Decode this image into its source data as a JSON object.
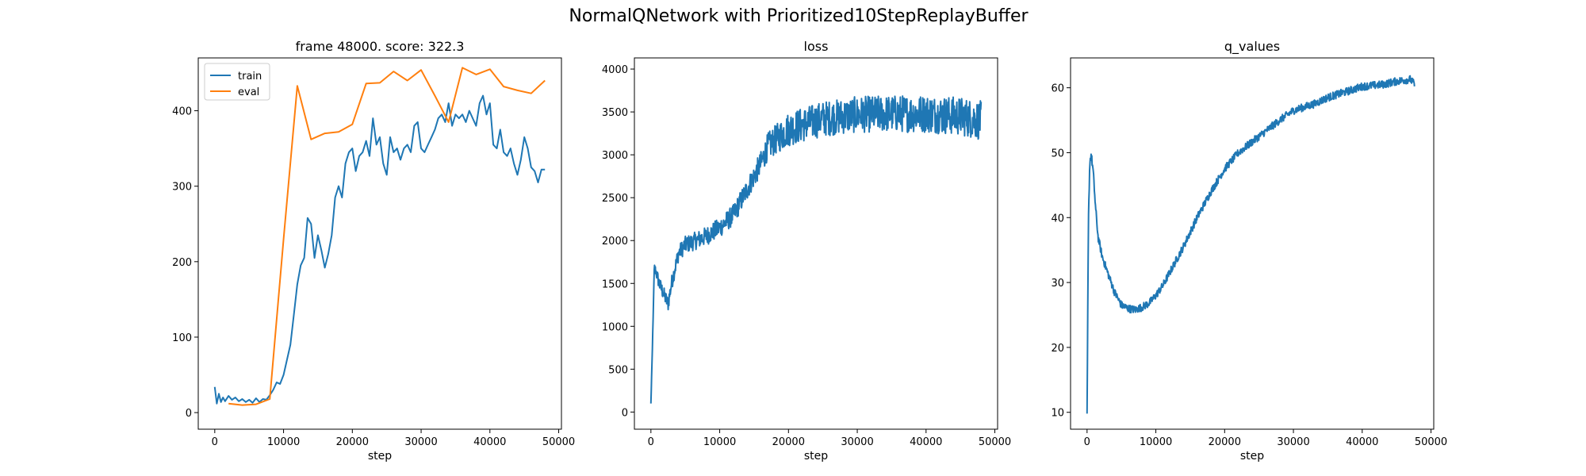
{
  "figure": {
    "suptitle": "NormalQNetwork with Prioritized10StepReplayBuffer"
  },
  "colors": {
    "train": "#1f77b4",
    "eval": "#ff7f0e",
    "axes": "#000000"
  },
  "chart_data": [
    {
      "type": "line",
      "title": "frame 48000. score: 322.3",
      "xlabel": "step",
      "ylabel": "",
      "xlim": [
        -2400,
        50400
      ],
      "ylim": [
        -22,
        470
      ],
      "xticks": [
        0,
        10000,
        20000,
        30000,
        40000,
        50000
      ],
      "yticks": [
        0,
        100,
        200,
        300,
        400
      ],
      "legend": {
        "placement": "top-left",
        "entries": [
          "train",
          "eval"
        ]
      },
      "grid": false,
      "series": [
        {
          "name": "train",
          "color": "#1f77b4",
          "x": [
            0,
            300,
            600,
            900,
            1200,
            1500,
            2000,
            2500,
            3000,
            3500,
            4000,
            4500,
            5000,
            5500,
            6000,
            6500,
            7000,
            7500,
            8000,
            8500,
            9000,
            9500,
            10000,
            10500,
            11000,
            11500,
            12000,
            12500,
            13000,
            13500,
            14000,
            14500,
            15000,
            15500,
            16000,
            16500,
            17000,
            17500,
            18000,
            18500,
            19000,
            19500,
            20000,
            20500,
            21000,
            21500,
            22000,
            22500,
            23000,
            23500,
            24000,
            24500,
            25000,
            25500,
            26000,
            26500,
            27000,
            27500,
            28000,
            28500,
            29000,
            29500,
            30000,
            30500,
            31000,
            31500,
            32000,
            32500,
            33000,
            33500,
            34000,
            34500,
            35000,
            35500,
            36000,
            36500,
            37000,
            37500,
            38000,
            38500,
            39000,
            39500,
            40000,
            40500,
            41000,
            41500,
            42000,
            42500,
            43000,
            43500,
            44000,
            44500,
            45000,
            45500,
            46000,
            46500,
            47000,
            47500,
            48000
          ],
          "y": [
            34,
            12,
            25,
            14,
            20,
            15,
            22,
            17,
            20,
            15,
            18,
            14,
            17,
            13,
            19,
            14,
            18,
            17,
            23,
            30,
            40,
            38,
            50,
            70,
            90,
            130,
            170,
            195,
            205,
            258,
            250,
            205,
            235,
            215,
            192,
            210,
            235,
            285,
            300,
            285,
            330,
            345,
            350,
            320,
            340,
            345,
            360,
            340,
            390,
            355,
            365,
            330,
            315,
            365,
            345,
            350,
            335,
            350,
            355,
            345,
            380,
            385,
            350,
            345,
            355,
            365,
            375,
            390,
            395,
            385,
            410,
            380,
            395,
            390,
            395,
            385,
            400,
            390,
            380,
            410,
            420,
            395,
            410,
            355,
            350,
            375,
            345,
            340,
            350,
            330,
            315,
            335,
            365,
            350,
            325,
            320,
            305,
            322,
            322
          ]
        },
        {
          "name": "eval",
          "color": "#ff7f0e",
          "x": [
            2000,
            4000,
            6000,
            8000,
            10000,
            12000,
            14000,
            16000,
            18000,
            20000,
            22000,
            24000,
            26000,
            28000,
            30000,
            32000,
            34000,
            36000,
            38000,
            40000,
            42000,
            44000,
            46000,
            48000
          ],
          "y": [
            12,
            10,
            11,
            18,
            230,
            433,
            362,
            370,
            372,
            382,
            436,
            437,
            452,
            440,
            454,
            420,
            385,
            457,
            448,
            455,
            432,
            427,
            423,
            440
          ]
        }
      ]
    },
    {
      "type": "line",
      "title": "loss",
      "xlabel": "step",
      "ylabel": "",
      "xlim": [
        -2400,
        50400
      ],
      "ylim": [
        -200,
        4130
      ],
      "xticks": [
        0,
        10000,
        20000,
        30000,
        40000,
        50000
      ],
      "yticks": [
        0,
        500,
        1000,
        1500,
        2000,
        2500,
        3000,
        3500,
        4000
      ],
      "grid": false,
      "series": [
        {
          "name": "",
          "color": "#1f77b4",
          "anchors_x": [
            0,
            200,
            500,
            800,
            1200,
            2000,
            2500,
            3000,
            4000,
            5000,
            6000,
            8000,
            10000,
            12000,
            14000,
            16000,
            17000,
            20000,
            25000,
            30000,
            35000,
            40000,
            45000,
            48000
          ],
          "anchors_y": [
            100,
            700,
            1700,
            1620,
            1500,
            1350,
            1260,
            1500,
            1850,
            1950,
            1980,
            2050,
            2150,
            2300,
            2600,
            2900,
            3100,
            3300,
            3420,
            3470,
            3480,
            3480,
            3450,
            3400
          ],
          "noise_anchors_x": [
            0,
            1000,
            5000,
            15000,
            20000,
            48000
          ],
          "noise_anchors_amp": [
            0,
            80,
            100,
            130,
            200,
            230
          ]
        }
      ]
    },
    {
      "type": "line",
      "title": "q_values",
      "xlabel": "step",
      "ylabel": "",
      "xlim": [
        -2400,
        50400
      ],
      "ylim": [
        7.4,
        64.6
      ],
      "xticks": [
        0,
        10000,
        20000,
        30000,
        40000,
        50000
      ],
      "yticks": [
        10,
        20,
        30,
        40,
        50,
        60
      ],
      "grid": false,
      "series": [
        {
          "name": "",
          "color": "#1f77b4",
          "anchors_x": [
            0,
            200,
            400,
            600,
            900,
            1200,
            1600,
            2200,
            3000,
            4000,
            5000,
            6000,
            7000,
            8000,
            9000,
            10000,
            11000,
            12000,
            13000,
            14000,
            16000,
            18000,
            20000,
            22000,
            25000,
            28000,
            30000,
            33000,
            35000,
            38000,
            40000,
            43000,
            45000,
            47000,
            47600
          ],
          "anchors_y": [
            9.8,
            40,
            48.5,
            49.8,
            47,
            42,
            37,
            34,
            31.5,
            28.5,
            26.5,
            26,
            25.8,
            26.2,
            26.8,
            28,
            29.5,
            31.5,
            33.5,
            35.5,
            40,
            44,
            47.5,
            50,
            52.5,
            55,
            56.5,
            57.5,
            58.5,
            59.5,
            60.2,
            60.5,
            61,
            61.3,
            60.5
          ],
          "noise_amp": 0.6
        }
      ]
    }
  ]
}
